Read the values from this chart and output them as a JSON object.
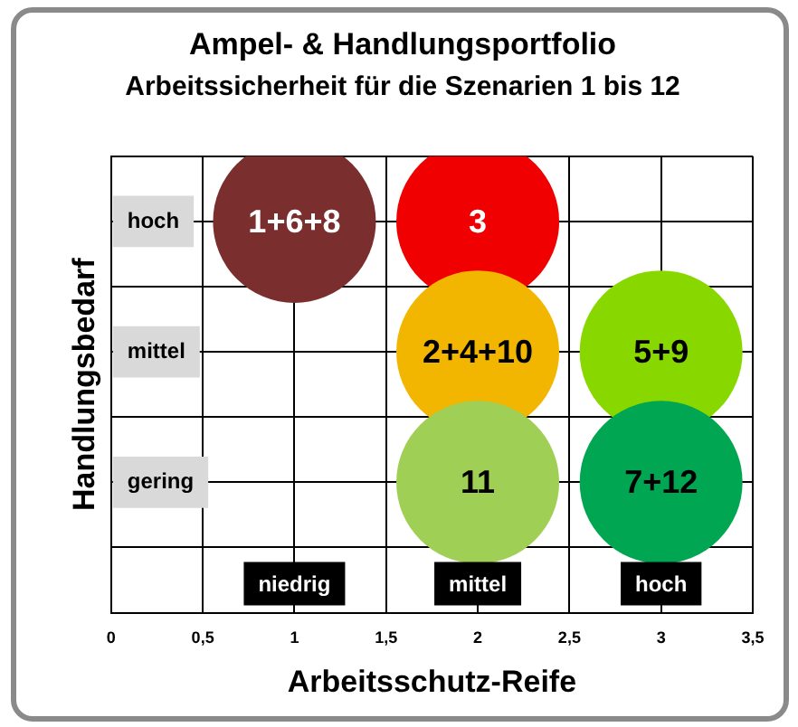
{
  "chart_data": {
    "type": "bubble",
    "orientation": "horizontal",
    "title": "Ampel- & Handlungsportfolio",
    "subtitle": "Arbeitssicherheit für die Szenarien 1 bis 12",
    "xlabel": "Arbeitsschutz-Reife",
    "ylabel": "Handlungsbedarf",
    "categories": [
      null,
      "hoch",
      null,
      "mittel",
      null,
      "gering",
      null,
      null
    ],
    "series": [
      {
        "values": [
          null,
          1,
          null,
          2,
          null,
          2,
          null,
          null
        ],
        "sizes": [
          null,
          1,
          null,
          1,
          null,
          1,
          null,
          null
        ],
        "colors": [
          null,
          "#7a2e2e",
          null,
          "#f2b600",
          null,
          "#9fcf55",
          null,
          null
        ]
      },
      {
        "values": [
          null,
          2,
          null,
          3,
          null,
          3,
          null,
          null
        ],
        "sizes": [
          null,
          1,
          null,
          1,
          null,
          1,
          null,
          null
        ],
        "colors": [
          null,
          "#f00000",
          null,
          "#88d800",
          null,
          "#00a651",
          null,
          null
        ]
      }
    ],
    "xlim": [
      0,
      3.5
    ],
    "xticks": [
      0,
      {
        "value": 0.5,
        "label": "0,5"
      },
      1,
      {
        "value": 1.5,
        "label": "1,5"
      },
      2,
      {
        "value": 2.5,
        "label": "2,5"
      },
      3,
      {
        "value": 3.5,
        "label": "3,5"
      }
    ],
    "grid": true,
    "annotations": [
      {
        "text": "1+6+8",
        "x": 1,
        "y": "hoch"
      },
      {
        "text": "3",
        "x": 2,
        "y": "hoch"
      },
      {
        "text": "2+4+10",
        "x": 2,
        "y": "mittel"
      },
      {
        "text": "5+9",
        "x": 3,
        "y": "mittel"
      },
      {
        "text": "11",
        "x": 2,
        "y": "gering"
      },
      {
        "text": "7+12",
        "x": 3,
        "y": "gering"
      },
      "niedrig",
      "mittel",
      "hoch"
    ]
  }
}
